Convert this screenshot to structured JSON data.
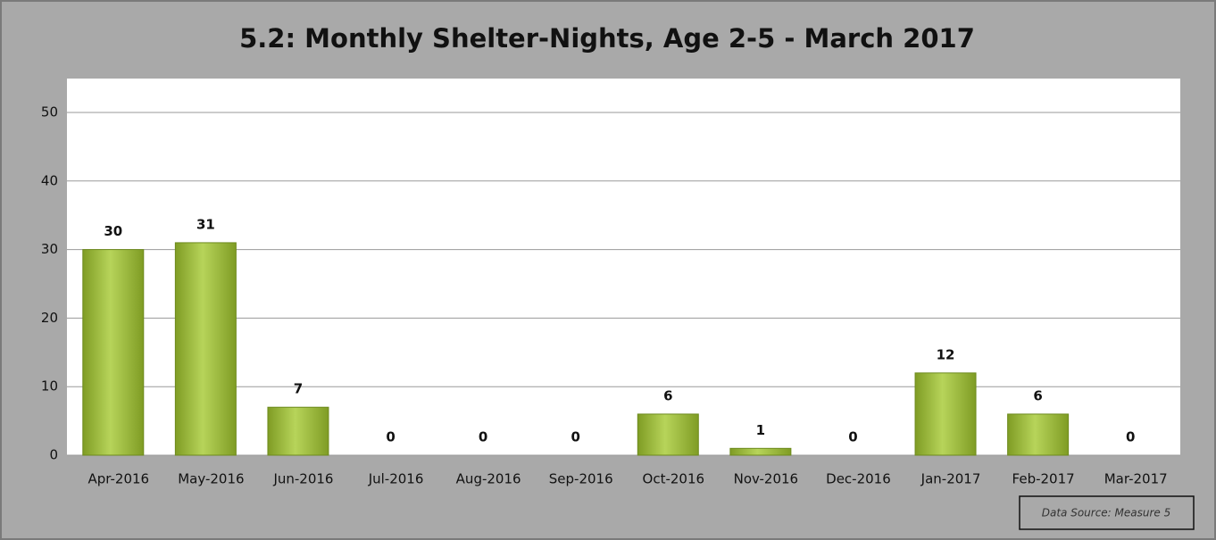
{
  "chart_data": {
    "type": "bar",
    "title": "5.2: Monthly Shelter-Nights, Age 2-5 - March 2017",
    "categories": [
      "Apr-2016",
      "May-2016",
      "Jun-2016",
      "Jul-2016",
      "Aug-2016",
      "Sep-2016",
      "Oct-2016",
      "Nov-2016",
      "Dec-2016",
      "Jan-2017",
      "Feb-2017",
      "Mar-2017"
    ],
    "values": [
      30,
      31,
      7,
      0,
      0,
      0,
      6,
      1,
      0,
      12,
      6,
      0
    ],
    "color": "#9bbb3b",
    "ylim": [
      0,
      55
    ],
    "yticks": [
      0,
      10,
      20,
      30,
      40,
      50
    ],
    "grid": true,
    "annotation": "Data Source: Measure 5"
  }
}
